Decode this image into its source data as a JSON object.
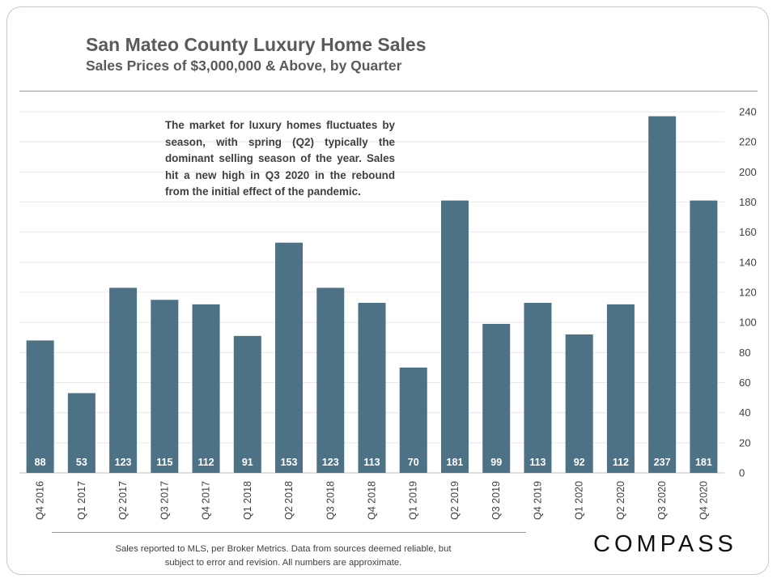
{
  "header": {
    "title": "San Mateo County Luxury Home Sales",
    "subtitle": "Sales Prices of $3,000,000 & Above, by Quarter"
  },
  "annotation": "The market for luxury homes fluctuates by season, with spring (Q2) typically the dominant selling season of the year. Sales hit a new high in Q3 2020 in the rebound from the initial effect of the pandemic.",
  "footer": {
    "note_line1": "Sales reported to MLS, per Broker Metrics. Data from sources deemed reliable, but",
    "note_line2": "subject to error and revision. All numbers are approximate.",
    "logo": "COMPASS"
  },
  "colors": {
    "bar": "#4d7286",
    "bar_label": "#ffffff",
    "grid": "#e8e8e8",
    "axis_text": "#404040"
  },
  "chart_data": {
    "type": "bar",
    "categories": [
      "Q4 2016",
      "Q1 2017",
      "Q2 2017",
      "Q3 2017",
      "Q4 2017",
      "Q1 2018",
      "Q2 2018",
      "Q3 2018",
      "Q4 2018",
      "Q1 2019",
      "Q2 2019",
      "Q3 2019",
      "Q4 2019",
      "Q1 2020",
      "Q2 2020",
      "Q3 2020",
      "Q4 2020"
    ],
    "values": [
      88,
      53,
      123,
      115,
      112,
      91,
      153,
      123,
      113,
      70,
      181,
      99,
      113,
      92,
      112,
      237,
      181
    ],
    "ylim": [
      0,
      240
    ],
    "yticks": [
      0,
      20,
      40,
      60,
      80,
      100,
      120,
      140,
      160,
      180,
      200,
      220,
      240
    ],
    "y_axis_side": "right",
    "grid": true,
    "legend": "none"
  }
}
